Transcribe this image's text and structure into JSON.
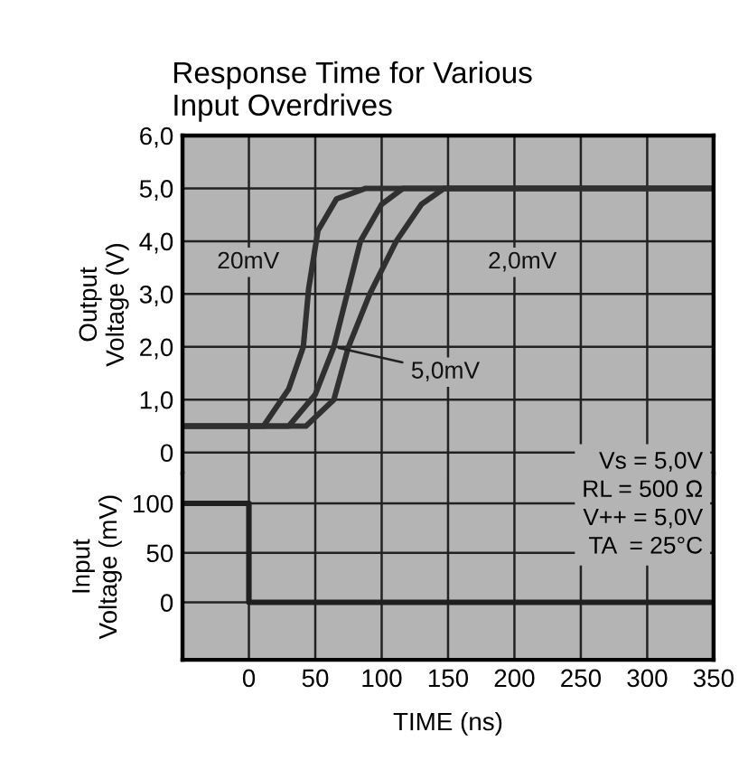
{
  "chart_data": [
    {
      "type": "line",
      "title": "Response Time for Various\nInput Overdrives",
      "ylabel": "Output\nVoltage (V)",
      "series": [
        {
          "color": "#303030",
          "x": [
            -50,
            11,
            30,
            41,
            45,
            52,
            66,
            88,
            350
          ],
          "values": [
            0.5,
            0.5,
            1.2,
            2.0,
            3.1,
            4.2,
            4.8,
            5.0,
            5.0
          ]
        },
        {
          "color": "#303030",
          "x": [
            -50,
            30,
            50,
            64,
            74,
            84,
            100,
            116,
            350
          ],
          "values": [
            0.5,
            0.5,
            1.1,
            2.0,
            3.0,
            4.0,
            4.7,
            5.0,
            5.0
          ]
        },
        {
          "color": "#303030",
          "x": [
            -50,
            43,
            64,
            75,
            91,
            111,
            130,
            147,
            350
          ],
          "values": [
            0.5,
            0.5,
            1.0,
            2.0,
            3.0,
            4.0,
            4.7,
            5.0,
            5.0
          ]
        }
      ],
      "annotations": [
        "20mV",
        "2,0mV",
        {
          "text": "5,0mV",
          "x": 64,
          "y": 2.0
        }
      ],
      "xlim": [
        -50,
        350
      ],
      "xticks": [
        0,
        50,
        100,
        150,
        200,
        250,
        300,
        350
      ],
      "ylim": [
        -0.4,
        6.0
      ],
      "yticks": [
        {
          "value": 0,
          "label": "0"
        },
        {
          "value": 1,
          "label": "1,0"
        },
        {
          "value": 2,
          "label": "2,0"
        },
        {
          "value": 3,
          "label": "3,0"
        },
        {
          "value": 4,
          "label": "4,0"
        },
        {
          "value": 5,
          "label": "5,0"
        },
        {
          "value": 6,
          "label": "6,0"
        }
      ],
      "tick_labels": "y",
      "grid": true
    },
    {
      "type": "line",
      "ylabel": "Input\nVoltage (mV)",
      "xlabel": "TIME (ns)",
      "series": [
        {
          "color": "#202020",
          "x": [
            -50,
            0,
            0,
            350
          ],
          "values": [
            100,
            100,
            0,
            0
          ]
        }
      ],
      "annotations": [
        "Vs = 5,0V\nRL = 500 Ω\nV++ = 5,0V\nTA  = 25°C"
      ],
      "xlim": [
        -50,
        350
      ],
      "xticks": [
        0,
        50,
        100,
        150,
        200,
        250,
        300,
        350
      ],
      "ylim": [
        -58,
        130
      ],
      "yticks": [
        0,
        50,
        100
      ],
      "grid": true
    }
  ]
}
